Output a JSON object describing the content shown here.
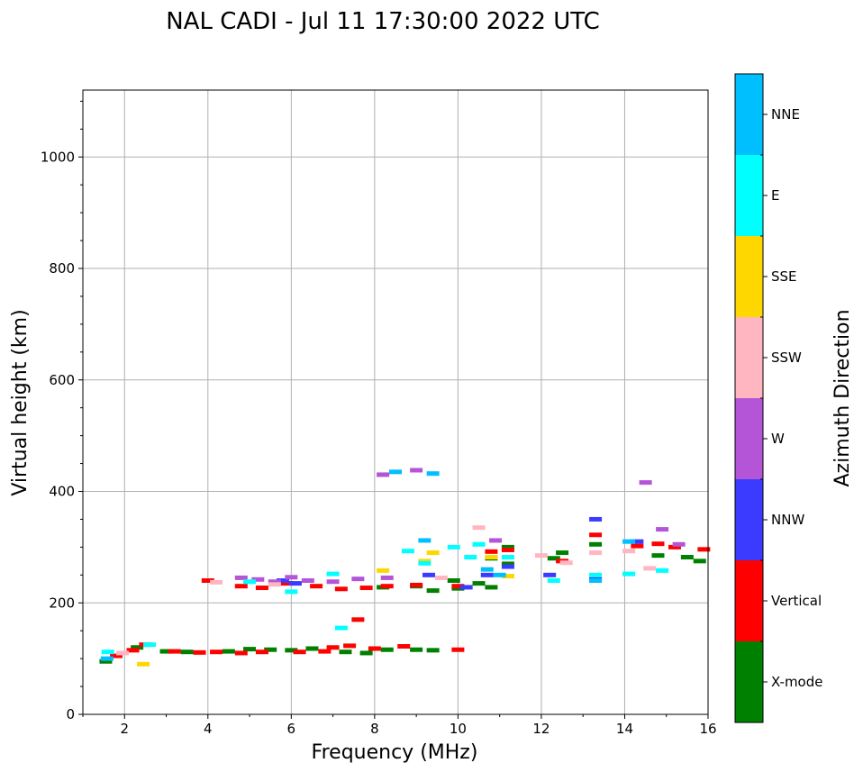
{
  "chart_data": {
    "type": "scatter",
    "title": "NAL CADI - Jul 11 17:30:00 2022 UTC",
    "xlabel": "Frequency (MHz)",
    "ylabel": "Virtual height (km)",
    "xlim": [
      1,
      16
    ],
    "ylim": [
      0,
      1120
    ],
    "xticks": [
      2,
      4,
      6,
      8,
      10,
      12,
      14,
      16
    ],
    "yticks": [
      0,
      200,
      400,
      600,
      800,
      1000
    ],
    "grid": true,
    "colorbar": {
      "label": "Azimuth Direction",
      "entries": [
        {
          "name": "X-mode",
          "color": "#008000"
        },
        {
          "name": "Vertical",
          "color": "#ff0000"
        },
        {
          "name": "NNW",
          "color": "#3b3bff"
        },
        {
          "name": "W",
          "color": "#b455d8"
        },
        {
          "name": "SSW",
          "color": "#ffb6c1"
        },
        {
          "name": "SSE",
          "color": "#ffd700"
        },
        {
          "name": "E",
          "color": "#00ffff"
        },
        {
          "name": "NNE",
          "color": "#00bfff"
        }
      ]
    },
    "series": [
      {
        "name": "X-mode",
        "points": [
          [
            1.55,
            95
          ],
          [
            2.3,
            120
          ],
          [
            3.0,
            113
          ],
          [
            3.5,
            112
          ],
          [
            4.5,
            113
          ],
          [
            5.0,
            117
          ],
          [
            5.5,
            116
          ],
          [
            6.0,
            115
          ],
          [
            6.5,
            118
          ],
          [
            7.3,
            112
          ],
          [
            7.8,
            110
          ],
          [
            8.3,
            116
          ],
          [
            9.0,
            116
          ],
          [
            9.4,
            115
          ],
          [
            8.2,
            228
          ],
          [
            9.0,
            230
          ],
          [
            9.4,
            222
          ],
          [
            10.0,
            226
          ],
          [
            10.5,
            235
          ],
          [
            10.8,
            228
          ],
          [
            11.2,
            270
          ],
          [
            12.3,
            280
          ],
          [
            12.5,
            290
          ],
          [
            13.3,
            305
          ],
          [
            14.8,
            285
          ],
          [
            15.5,
            282
          ],
          [
            15.8,
            275
          ],
          [
            10.8,
            280
          ],
          [
            11.2,
            300
          ],
          [
            9.9,
            240
          ]
        ]
      },
      {
        "name": "Vertical",
        "points": [
          [
            1.8,
            105
          ],
          [
            2.2,
            115
          ],
          [
            2.5,
            125
          ],
          [
            3.2,
            113
          ],
          [
            3.8,
            111
          ],
          [
            4.2,
            112
          ],
          [
            4.8,
            110
          ],
          [
            5.3,
            112
          ],
          [
            6.2,
            112
          ],
          [
            6.8,
            113
          ],
          [
            7.0,
            120
          ],
          [
            7.4,
            123
          ],
          [
            7.6,
            170
          ],
          [
            8.0,
            118
          ],
          [
            8.7,
            122
          ],
          [
            10.0,
            116
          ],
          [
            4.0,
            240
          ],
          [
            4.8,
            230
          ],
          [
            5.3,
            227
          ],
          [
            5.9,
            235
          ],
          [
            6.6,
            230
          ],
          [
            7.2,
            225
          ],
          [
            7.8,
            227
          ],
          [
            8.3,
            230
          ],
          [
            9.0,
            232
          ],
          [
            10.0,
            230
          ],
          [
            10.8,
            292
          ],
          [
            11.2,
            295
          ],
          [
            12.5,
            275
          ],
          [
            13.3,
            322
          ],
          [
            14.3,
            302
          ],
          [
            14.8,
            306
          ],
          [
            15.2,
            300
          ],
          [
            15.9,
            296
          ]
        ]
      },
      {
        "name": "NNW",
        "points": [
          [
            5.8,
            240
          ],
          [
            6.1,
            235
          ],
          [
            9.3,
            250
          ],
          [
            10.2,
            228
          ],
          [
            10.7,
            250
          ],
          [
            11.2,
            265
          ],
          [
            12.2,
            250
          ],
          [
            13.3,
            350
          ],
          [
            13.3,
            242
          ],
          [
            14.3,
            310
          ]
        ]
      },
      {
        "name": "W",
        "points": [
          [
            4.8,
            245
          ],
          [
            5.2,
            242
          ],
          [
            5.6,
            238
          ],
          [
            6.0,
            246
          ],
          [
            6.4,
            240
          ],
          [
            7.0,
            238
          ],
          [
            7.6,
            243
          ],
          [
            8.2,
            430
          ],
          [
            9.0,
            438
          ],
          [
            8.3,
            245
          ],
          [
            10.9,
            312
          ],
          [
            14.5,
            416
          ],
          [
            14.9,
            332
          ],
          [
            15.3,
            305
          ]
        ]
      },
      {
        "name": "SSW",
        "points": [
          [
            1.95,
            110
          ],
          [
            4.2,
            237
          ],
          [
            5.6,
            233
          ],
          [
            9.6,
            245
          ],
          [
            10.5,
            335
          ],
          [
            12.0,
            285
          ],
          [
            12.6,
            272
          ],
          [
            13.3,
            290
          ],
          [
            14.1,
            293
          ],
          [
            14.6,
            262
          ]
        ]
      },
      {
        "name": "SSE",
        "points": [
          [
            2.45,
            90
          ],
          [
            8.2,
            258
          ],
          [
            9.2,
            275
          ],
          [
            9.4,
            290
          ],
          [
            10.8,
            282
          ],
          [
            11.2,
            248
          ]
        ]
      },
      {
        "name": "E",
        "points": [
          [
            1.6,
            112
          ],
          [
            2.6,
            125
          ],
          [
            5.0,
            238
          ],
          [
            6.0,
            220
          ],
          [
            7.0,
            252
          ],
          [
            7.2,
            155
          ],
          [
            8.8,
            293
          ],
          [
            9.2,
            271
          ],
          [
            9.9,
            300
          ],
          [
            10.3,
            282
          ],
          [
            10.5,
            305
          ],
          [
            11.2,
            282
          ],
          [
            12.3,
            240
          ],
          [
            13.3,
            250
          ],
          [
            14.1,
            252
          ],
          [
            14.9,
            258
          ]
        ]
      },
      {
        "name": "NNE",
        "points": [
          [
            1.58,
            100
          ],
          [
            8.5,
            435
          ],
          [
            9.2,
            312
          ],
          [
            9.4,
            432
          ],
          [
            10.7,
            260
          ],
          [
            11.0,
            250
          ],
          [
            13.3,
            240
          ],
          [
            14.1,
            310
          ]
        ]
      }
    ]
  }
}
